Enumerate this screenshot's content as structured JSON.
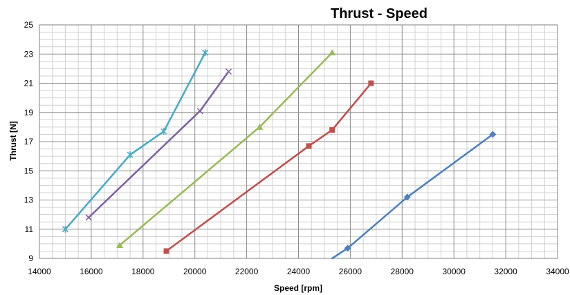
{
  "chart_data": {
    "type": "line",
    "title": "Thrust - Speed",
    "xlabel": "Speed [rpm]",
    "ylabel": "Thrust [N]",
    "xlim": [
      14000,
      34000
    ],
    "ylim": [
      9,
      25
    ],
    "xticks": [
      "14000",
      "16000",
      "18000",
      "20000",
      "22000",
      "24000",
      "26000",
      "28000",
      "30000",
      "32000",
      "34000"
    ],
    "yticks": [
      "9",
      "11",
      "13",
      "15",
      "17",
      "19",
      "21",
      "23",
      "25"
    ],
    "grid": true,
    "legend": "none",
    "series": [
      {
        "color": "#4f81bd",
        "marker": "diamond",
        "points": [
          [
            25300,
            9.0
          ],
          [
            25900,
            9.7
          ],
          [
            28200,
            13.2
          ],
          [
            31500,
            17.5
          ]
        ]
      },
      {
        "color": "#c0504d",
        "marker": "square",
        "points": [
          [
            18900,
            9.5
          ],
          [
            24400,
            16.7
          ],
          [
            25300,
            17.8
          ],
          [
            26800,
            21.0
          ]
        ]
      },
      {
        "color": "#9bbb59",
        "marker": "triangle",
        "points": [
          [
            17100,
            9.9
          ],
          [
            22500,
            18.0
          ],
          [
            25300,
            23.1
          ]
        ]
      },
      {
        "color": "#8064a2",
        "marker": "x",
        "points": [
          [
            15900,
            11.8
          ],
          [
            20200,
            19.1
          ],
          [
            21300,
            21.8
          ]
        ]
      },
      {
        "color": "#4bacc6",
        "marker": "star",
        "points": [
          [
            15000,
            11.0
          ],
          [
            17500,
            16.1
          ],
          [
            18800,
            17.7
          ],
          [
            20400,
            23.1
          ]
        ]
      }
    ]
  }
}
